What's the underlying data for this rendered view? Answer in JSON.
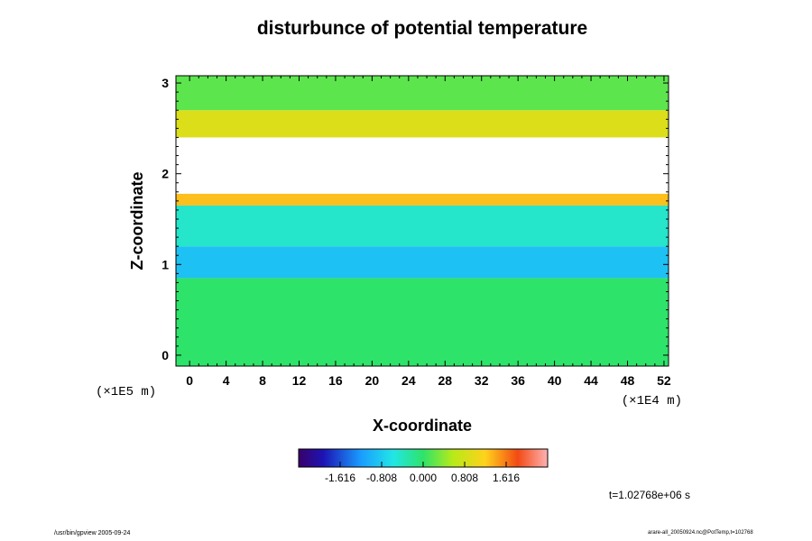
{
  "chart_data": {
    "type": "heatmap",
    "title": "disturbunce of potential temperature",
    "xlabel": "X-coordinate",
    "ylabel": "Z-coordinate",
    "x_unit": "(×1E4 m)",
    "y_unit": "(×1E5 m)",
    "xlim": [
      -1.5,
      52.5
    ],
    "ylim": [
      -0.12,
      3.08
    ],
    "x_ticks": [
      0,
      4,
      8,
      12,
      16,
      20,
      24,
      28,
      32,
      36,
      40,
      44,
      48,
      52
    ],
    "y_ticks": [
      0,
      1,
      2,
      3
    ],
    "colorbar": {
      "ticks": [
        -1.616,
        -0.808,
        0.0,
        0.808,
        1.616
      ],
      "tick_labels": [
        "-1.616",
        "-0.808",
        "0.000",
        "0.808",
        "1.616"
      ],
      "range": [
        -2.424,
        2.424
      ]
    },
    "bands": [
      {
        "z": [
          -0.12,
          0.85
        ],
        "value": 0.0
      },
      {
        "z": [
          0.85,
          1.2
        ],
        "value": -0.9
      },
      {
        "z": [
          1.2,
          1.65
        ],
        "value": -0.45
      },
      {
        "z": [
          1.65,
          1.78
        ],
        "value": 1.3
      },
      {
        "z": [
          1.78,
          2.4
        ],
        "value": "above-range"
      },
      {
        "z": [
          2.4,
          2.7
        ],
        "value": 0.9
      },
      {
        "z": [
          2.7,
          3.08
        ],
        "value": 0.2
      }
    ],
    "annotation_time": "t=1.02768e+06 s"
  },
  "footer": {
    "left": "/usr/bin/gpview 2005-09-24",
    "right": "arare-all_20050924.nc@PotTemp,t=102768"
  }
}
